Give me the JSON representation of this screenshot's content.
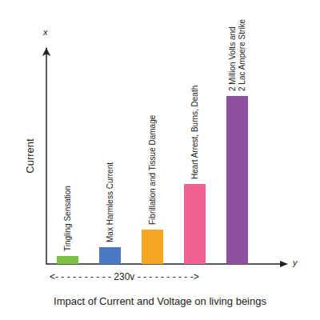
{
  "chart_data": {
    "type": "bar",
    "title": "Impact of Current and Voltage on living beings",
    "ylabel": "Current",
    "y_axis_end_label": "x",
    "x_axis_end_label": "y",
    "range_note": "<- - - - - - - - - - 230v - - - - - - - - - ->",
    "categories": [
      "Tingling Sensation",
      "Max Harmless Current",
      "Fibrillation and Tissue Damage",
      "Heart Arrest, Burns, Death",
      "2 Million Volts and\n2 Lac Ampere Strike"
    ],
    "values": [
      10,
      21,
      43,
      100,
      210
    ],
    "colors": [
      "#7cc242",
      "#4a78c2",
      "#f5a623",
      "#f06292",
      "#8e4fa0"
    ],
    "ylim": [
      0,
      270
    ],
    "grid": false,
    "tick_labels": false
  }
}
